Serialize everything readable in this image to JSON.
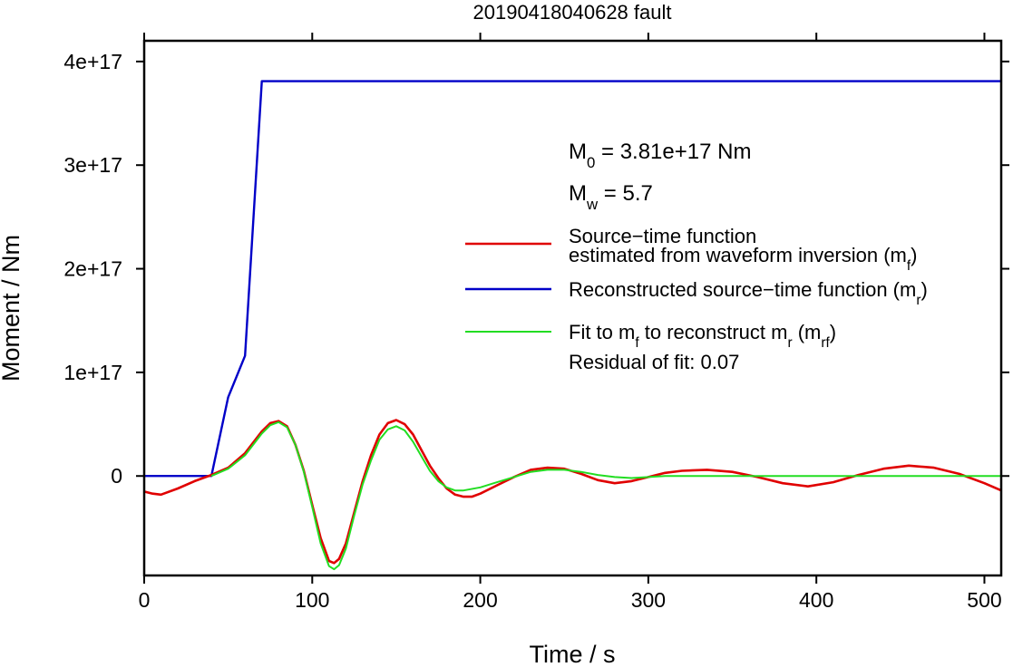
{
  "chart_data": {
    "type": "line",
    "title": "20190418040628 fault",
    "xlabel": "Time / s",
    "ylabel": "Moment / Nm",
    "xlim": [
      0,
      510
    ],
    "ylim": [
      -9.6e+16,
      4.2e+17
    ],
    "xticks": [
      0,
      100,
      200,
      300,
      400,
      500
    ],
    "xtick_labels": [
      "0",
      "100",
      "200",
      "300",
      "400",
      "500"
    ],
    "yticks": [
      0,
      1e+17,
      2e+17,
      3e+17,
      4e+17
    ],
    "ytick_labels": [
      "0",
      "1e+17",
      "2e+17",
      "3e+17",
      "4e+17"
    ],
    "grid": false,
    "legend_position": "right",
    "annotations": {
      "m0": {
        "base": "M",
        "sub": "0",
        "rest": " = 3.81e+17 Nm"
      },
      "mw": {
        "base": "M",
        "sub": "w",
        "rest": " = 5.7"
      },
      "residual": "Residual of fit: 0.07"
    },
    "legend": [
      {
        "color": "#e00000",
        "lines": [
          {
            "text": "Source−time function"
          },
          {
            "text": "estimated from waveform inversion (m",
            "sub": "f",
            "after": ")"
          }
        ]
      },
      {
        "color": "#0000c8",
        "lines": [
          {
            "text": "Reconstructed source−time function (m",
            "sub": "r",
            "after": ")"
          }
        ]
      },
      {
        "color": "#22dd22",
        "lines": [
          {
            "text": "Fit to m",
            "sub": "f",
            "after": " to reconstruct m",
            "sub2": "r",
            "after2": " (m",
            "sub3": "rf",
            "after3": ")"
          }
        ]
      }
    ],
    "series": [
      {
        "key": "mr",
        "color": "#0000c8",
        "width": 2.4,
        "points": [
          [
            0,
            0
          ],
          [
            40,
            0
          ],
          [
            50,
            7.6e+16
          ],
          [
            60,
            1.16e+17
          ],
          [
            70,
            3.81e+17
          ],
          [
            510,
            3.81e+17
          ]
        ]
      },
      {
        "key": "mf",
        "color": "#e00000",
        "width": 2.6,
        "points": [
          [
            0,
            -1.5e+16
          ],
          [
            5,
            -1.7e+16
          ],
          [
            10,
            -1.8e+16
          ],
          [
            20,
            -1.2e+16
          ],
          [
            30,
            -5000000000000000.0
          ],
          [
            40,
            1000000000000000.0
          ],
          [
            50,
            8000000000000000.0
          ],
          [
            60,
            2.2e+16
          ],
          [
            70,
            4.3e+16
          ],
          [
            75,
            5.1e+16
          ],
          [
            80,
            5.3e+16
          ],
          [
            85,
            4.8e+16
          ],
          [
            90,
            3e+16
          ],
          [
            95,
            5000000000000000.0
          ],
          [
            100,
            -2.8e+16
          ],
          [
            105,
            -6e+16
          ],
          [
            110,
            -8.2e+16
          ],
          [
            113,
            -8.4e+16
          ],
          [
            116,
            -8e+16
          ],
          [
            120,
            -6.5e+16
          ],
          [
            125,
            -3.5e+16
          ],
          [
            130,
            -5000000000000000.0
          ],
          [
            135,
            2e+16
          ],
          [
            140,
            4e+16
          ],
          [
            145,
            5.1e+16
          ],
          [
            150,
            5.4e+16
          ],
          [
            155,
            5e+16
          ],
          [
            160,
            4e+16
          ],
          [
            165,
            2.5e+16
          ],
          [
            170,
            1e+16
          ],
          [
            175,
            -2000000000000000.0
          ],
          [
            180,
            -1.2e+16
          ],
          [
            185,
            -1.8e+16
          ],
          [
            190,
            -2e+16
          ],
          [
            195,
            -2e+16
          ],
          [
            200,
            -1.7e+16
          ],
          [
            210,
            -9000000000000000.0
          ],
          [
            220,
            -1000000000000000.0
          ],
          [
            230,
            6000000000000000.0
          ],
          [
            240,
            8000000000000000.0
          ],
          [
            250,
            7000000000000000.0
          ],
          [
            260,
            2000000000000000.0
          ],
          [
            270,
            -4000000000000000.0
          ],
          [
            280,
            -7000000000000000.0
          ],
          [
            290,
            -5000000000000000.0
          ],
          [
            300,
            -1000000000000000.0
          ],
          [
            310,
            3000000000000000.0
          ],
          [
            320,
            5000000000000000.0
          ],
          [
            335,
            6000000000000000.0
          ],
          [
            350,
            4000000000000000.0
          ],
          [
            365,
            -1000000000000000.0
          ],
          [
            380,
            -7000000000000000.0
          ],
          [
            395,
            -1e+16
          ],
          [
            410,
            -6000000000000000.0
          ],
          [
            425,
            1000000000000000.0
          ],
          [
            440,
            7000000000000000.0
          ],
          [
            455,
            1e+16
          ],
          [
            470,
            8000000000000000.0
          ],
          [
            485,
            2000000000000000.0
          ],
          [
            500,
            -7000000000000000.0
          ],
          [
            510,
            -1.4e+16
          ]
        ]
      },
      {
        "key": "mrf",
        "color": "#22dd22",
        "width": 2.0,
        "points": [
          [
            40,
            0
          ],
          [
            50,
            7000000000000000.0
          ],
          [
            60,
            2e+16
          ],
          [
            70,
            4.1e+16
          ],
          [
            75,
            4.9e+16
          ],
          [
            80,
            5.2e+16
          ],
          [
            85,
            4.7e+16
          ],
          [
            90,
            3e+16
          ],
          [
            95,
            4000000000000000.0
          ],
          [
            100,
            -3e+16
          ],
          [
            105,
            -6.5e+16
          ],
          [
            110,
            -8.7e+16
          ],
          [
            113,
            -9e+16
          ],
          [
            116,
            -8.6e+16
          ],
          [
            120,
            -7e+16
          ],
          [
            125,
            -3.8e+16
          ],
          [
            130,
            -8000000000000000.0
          ],
          [
            135,
            1.5e+16
          ],
          [
            140,
            3.5e+16
          ],
          [
            145,
            4.5e+16
          ],
          [
            150,
            4.8e+16
          ],
          [
            155,
            4.4e+16
          ],
          [
            160,
            3.3e+16
          ],
          [
            165,
            1.9e+16
          ],
          [
            170,
            5000000000000000.0
          ],
          [
            175,
            -5000000000000000.0
          ],
          [
            180,
            -1.1e+16
          ],
          [
            185,
            -1.4e+16
          ],
          [
            190,
            -1.4e+16
          ],
          [
            200,
            -1.1e+16
          ],
          [
            210,
            -6000000000000000.0
          ],
          [
            220,
            -1000000000000000.0
          ],
          [
            230,
            4000000000000000.0
          ],
          [
            240,
            6000000000000000.0
          ],
          [
            250,
            6000000000000000.0
          ],
          [
            260,
            4000000000000000.0
          ],
          [
            270,
            1000000000000000.0
          ],
          [
            280,
            -1000000000000000.0
          ],
          [
            290,
            -2000000000000000.0
          ],
          [
            300,
            -1000000000000000.0
          ],
          [
            310,
            0
          ],
          [
            330,
            0
          ],
          [
            360,
            0
          ],
          [
            400,
            0
          ],
          [
            450,
            0
          ],
          [
            500,
            0
          ],
          [
            510,
            0
          ]
        ]
      }
    ]
  }
}
